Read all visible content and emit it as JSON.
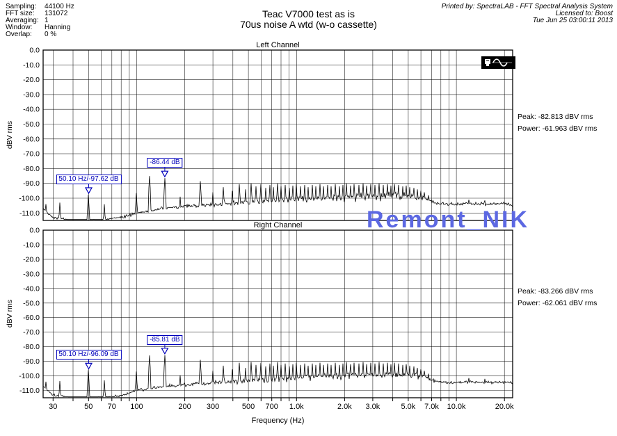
{
  "header": {
    "params": [
      {
        "label": "Sampling:",
        "value": "44100 Hz"
      },
      {
        "label": "FFT size:",
        "value": "131072"
      },
      {
        "label": "Averaging:",
        "value": "1"
      },
      {
        "label": "Window:",
        "value": "Hanning"
      },
      {
        "label": "Overlap:",
        "value": "0 %"
      }
    ],
    "title_line1": "Teac V7000 test as is",
    "title_line2": "70us noise A wtd (w-o cassette)",
    "printed_by": "Printed by: SpectraLAB - FFT Spectral Analysis System",
    "licensed_to": "Licensed to: Boost",
    "datetime": "Tue Jun 25 03:00:11 2013"
  },
  "watermark": {
    "text": "Remont_NIK",
    "color": "#5c68e2"
  },
  "colors": {
    "accent": "#0000bb",
    "trace": "#000000",
    "background": "#ffffff"
  },
  "axes": {
    "x_label": "Frequency (Hz)",
    "y_label": "dBV rms",
    "x_scale": "log",
    "x_ticks": [
      {
        "f": 30,
        "label": "30"
      },
      {
        "f": 50,
        "label": "50"
      },
      {
        "f": 70,
        "label": "70"
      },
      {
        "f": 100,
        "label": "100"
      },
      {
        "f": 200,
        "label": "200"
      },
      {
        "f": 300,
        "label": "300"
      },
      {
        "f": 500,
        "label": "500"
      },
      {
        "f": 700,
        "label": "700"
      },
      {
        "f": 1000,
        "label": "1.0k"
      },
      {
        "f": 2000,
        "label": "2.0k"
      },
      {
        "f": 3000,
        "label": "3.0k"
      },
      {
        "f": 5000,
        "label": "5.0k"
      },
      {
        "f": 7000,
        "label": "7.0k"
      },
      {
        "f": 10000,
        "label": "10.0k"
      },
      {
        "f": 20000,
        "label": "20.0k"
      }
    ],
    "y_ticks": [
      {
        "db": 0,
        "label": "0.0"
      },
      {
        "db": -10,
        "label": "-10.0"
      },
      {
        "db": -20,
        "label": "-20.0"
      },
      {
        "db": -30,
        "label": "-30.0"
      },
      {
        "db": -40,
        "label": "-40.0"
      },
      {
        "db": -50,
        "label": "-50.0"
      },
      {
        "db": -60,
        "label": "-60.0"
      },
      {
        "db": -70,
        "label": "-70.0"
      },
      {
        "db": -80,
        "label": "-80.0"
      },
      {
        "db": -90,
        "label": "-90.0"
      },
      {
        "db": -100,
        "label": "-100.0"
      },
      {
        "db": -110,
        "label": "-110.0"
      }
    ]
  },
  "chart_data": [
    {
      "type": "line",
      "title": "Left Channel",
      "xlabel": "Frequency (Hz)",
      "ylabel": "dBV rms",
      "x_scale": "log",
      "xlim": [
        26,
        22500
      ],
      "ylim": [
        -115,
        0
      ],
      "grid": true,
      "stats": {
        "peak": "Peak: -82.813 dBV rms",
        "power": "Power: -61.963 dBV rms"
      },
      "markers": [
        {
          "text": "50.10 Hz/-97.62 dB",
          "f": 50.1,
          "db": -97.62
        },
        {
          "text": "-86.44 dB",
          "f": 150,
          "db": -86.44
        }
      ],
      "noise_floor_dbv": [
        [
          26,
          -107
        ],
        [
          30,
          -113
        ],
        [
          40,
          -115
        ],
        [
          60,
          -115
        ],
        [
          80,
          -113
        ],
        [
          100,
          -110
        ],
        [
          130,
          -108
        ],
        [
          160,
          -106.5
        ],
        [
          200,
          -105.5
        ],
        [
          300,
          -104.5
        ],
        [
          400,
          -103.5
        ],
        [
          500,
          -103
        ],
        [
          700,
          -102
        ],
        [
          1000,
          -101
        ],
        [
          1500,
          -100
        ],
        [
          2000,
          -99.5
        ],
        [
          3000,
          -98.5
        ],
        [
          4000,
          -98
        ],
        [
          5000,
          -98.5
        ],
        [
          6000,
          -99.5
        ],
        [
          6800,
          -101.5
        ],
        [
          7500,
          -103.5
        ],
        [
          9000,
          -104
        ],
        [
          12000,
          -103.5
        ],
        [
          16000,
          -104
        ],
        [
          20000,
          -103.5
        ],
        [
          22500,
          -104.5
        ]
      ],
      "jitter_db": [
        [
          26,
          1
        ],
        [
          60,
          1
        ],
        [
          100,
          1.3
        ],
        [
          200,
          1.6
        ],
        [
          400,
          2
        ],
        [
          700,
          2.4
        ],
        [
          1000,
          2.8
        ],
        [
          1500,
          3.2
        ],
        [
          2000,
          3.6
        ],
        [
          3000,
          4
        ],
        [
          4500,
          4
        ],
        [
          6000,
          3.2
        ],
        [
          7000,
          1.6
        ],
        [
          9000,
          1.2
        ],
        [
          14000,
          1.3
        ],
        [
          22500,
          1.4
        ]
      ],
      "peaks_dbv": [
        [
          27,
          -104
        ],
        [
          33,
          -103
        ],
        [
          50.1,
          -97.62
        ],
        [
          63,
          -104
        ],
        [
          100,
          -96.5
        ],
        [
          120,
          -85
        ],
        [
          150,
          -86.44
        ],
        [
          188,
          -99
        ],
        [
          250,
          -88.5
        ],
        [
          300,
          -96
        ],
        [
          350,
          -92.5
        ],
        [
          395,
          -95
        ],
        [
          440,
          -90.5
        ],
        [
          480,
          -94
        ],
        [
          520,
          -90
        ],
        [
          560,
          -92
        ],
        [
          600,
          -90.5
        ],
        [
          640,
          -93
        ],
        [
          680,
          -91
        ],
        [
          720,
          -92.5
        ],
        [
          760,
          -90
        ],
        [
          800,
          -92
        ],
        [
          850,
          -91
        ],
        [
          900,
          -93
        ],
        [
          950,
          -91.5
        ],
        [
          1000,
          -90.5
        ],
        [
          1060,
          -92
        ],
        [
          1120,
          -91
        ],
        [
          1180,
          -92.5
        ],
        [
          1250,
          -91
        ],
        [
          1320,
          -92
        ],
        [
          1400,
          -90.5
        ],
        [
          1480,
          -92
        ],
        [
          1560,
          -91
        ],
        [
          1650,
          -92
        ],
        [
          1750,
          -90.5
        ],
        [
          1850,
          -92
        ],
        [
          1950,
          -91
        ],
        [
          2060,
          -90
        ],
        [
          2180,
          -91.5
        ],
        [
          2300,
          -90.5
        ],
        [
          2450,
          -91
        ],
        [
          2600,
          -90
        ],
        [
          2750,
          -91.5
        ],
        [
          2900,
          -90.5
        ],
        [
          3100,
          -91
        ],
        [
          3300,
          -90
        ],
        [
          3500,
          -91
        ],
        [
          3700,
          -90.5
        ],
        [
          3900,
          -91.5
        ],
        [
          4100,
          -90.5
        ],
        [
          4350,
          -91
        ],
        [
          4600,
          -92
        ],
        [
          4850,
          -91.5
        ],
        [
          5100,
          -92.5
        ],
        [
          5400,
          -93
        ],
        [
          5700,
          -94
        ],
        [
          6000,
          -95
        ],
        [
          6300,
          -96
        ],
        [
          6700,
          -98
        ],
        [
          12000,
          -101
        ],
        [
          15000,
          -101.5
        ]
      ],
      "seed": 42
    },
    {
      "type": "line",
      "title": "Right Channel",
      "xlabel": "Frequency (Hz)",
      "ylabel": "dBV rms",
      "x_scale": "log",
      "xlim": [
        26,
        22500
      ],
      "ylim": [
        -115,
        0
      ],
      "grid": true,
      "stats": {
        "peak": "Peak: -83.266 dBV rms",
        "power": "Power: -62.061 dBV rms"
      },
      "markers": [
        {
          "text": "50.10 Hz/-96.09 dB",
          "f": 50.1,
          "db": -96.09
        },
        {
          "text": "-85.81 dB",
          "f": 150,
          "db": -85.81
        }
      ],
      "noise_floor_dbv": [
        [
          26,
          -107
        ],
        [
          30,
          -113
        ],
        [
          40,
          -115
        ],
        [
          60,
          -115
        ],
        [
          80,
          -113.5
        ],
        [
          100,
          -110
        ],
        [
          130,
          -108
        ],
        [
          160,
          -107
        ],
        [
          200,
          -106
        ],
        [
          300,
          -105
        ],
        [
          400,
          -104
        ],
        [
          500,
          -103.5
        ],
        [
          700,
          -102.5
        ],
        [
          1000,
          -101.5
        ],
        [
          1500,
          -100.5
        ],
        [
          2000,
          -100
        ],
        [
          3000,
          -99
        ],
        [
          4000,
          -98.5
        ],
        [
          5000,
          -99
        ],
        [
          6000,
          -100
        ],
        [
          6800,
          -102
        ],
        [
          7500,
          -104
        ],
        [
          9000,
          -104.5
        ],
        [
          12000,
          -104
        ],
        [
          16000,
          -104.5
        ],
        [
          20000,
          -104
        ],
        [
          22500,
          -105
        ]
      ],
      "jitter_db": [
        [
          26,
          1
        ],
        [
          60,
          1
        ],
        [
          100,
          1.3
        ],
        [
          200,
          1.6
        ],
        [
          400,
          2
        ],
        [
          700,
          2.4
        ],
        [
          1000,
          2.8
        ],
        [
          1500,
          3.2
        ],
        [
          2000,
          3.6
        ],
        [
          3000,
          4
        ],
        [
          4500,
          4
        ],
        [
          6000,
          3.2
        ],
        [
          7000,
          1.6
        ],
        [
          9000,
          1.2
        ],
        [
          14000,
          1.3
        ],
        [
          22500,
          1.4
        ]
      ],
      "peaks_dbv": [
        [
          27,
          -104
        ],
        [
          33,
          -103.5
        ],
        [
          50.1,
          -96.09
        ],
        [
          63,
          -103
        ],
        [
          100,
          -97
        ],
        [
          120,
          -86
        ],
        [
          150,
          -85.81
        ],
        [
          188,
          -99.5
        ],
        [
          250,
          -89
        ],
        [
          300,
          -96.5
        ],
        [
          350,
          -93
        ],
        [
          395,
          -95.5
        ],
        [
          440,
          -91
        ],
        [
          480,
          -94.5
        ],
        [
          520,
          -90.5
        ],
        [
          560,
          -92.5
        ],
        [
          600,
          -91
        ],
        [
          640,
          -93.5
        ],
        [
          680,
          -91.5
        ],
        [
          720,
          -93
        ],
        [
          760,
          -90.5
        ],
        [
          800,
          -92.5
        ],
        [
          850,
          -91.5
        ],
        [
          900,
          -93.5
        ],
        [
          950,
          -92
        ],
        [
          1000,
          -91
        ],
        [
          1060,
          -92.5
        ],
        [
          1120,
          -91.5
        ],
        [
          1180,
          -93
        ],
        [
          1250,
          -91.5
        ],
        [
          1320,
          -92.5
        ],
        [
          1400,
          -91
        ],
        [
          1480,
          -92.5
        ],
        [
          1560,
          -91.5
        ],
        [
          1650,
          -92.5
        ],
        [
          1750,
          -91
        ],
        [
          1850,
          -92.5
        ],
        [
          1950,
          -91.5
        ],
        [
          2060,
          -90.5
        ],
        [
          2180,
          -92
        ],
        [
          2300,
          -91
        ],
        [
          2450,
          -91.5
        ],
        [
          2600,
          -90.5
        ],
        [
          2750,
          -92
        ],
        [
          2900,
          -91
        ],
        [
          3100,
          -91.5
        ],
        [
          3300,
          -90.5
        ],
        [
          3500,
          -91.5
        ],
        [
          3700,
          -91
        ],
        [
          3900,
          -92
        ],
        [
          4100,
          -91
        ],
        [
          4350,
          -91.5
        ],
        [
          4600,
          -92.5
        ],
        [
          4850,
          -92
        ],
        [
          5100,
          -93
        ],
        [
          5400,
          -93.5
        ],
        [
          5700,
          -94.5
        ],
        [
          6000,
          -95.5
        ],
        [
          6300,
          -96.5
        ],
        [
          6700,
          -98.5
        ],
        [
          12000,
          -101.5
        ],
        [
          15000,
          -102
        ]
      ],
      "seed": 1337
    }
  ]
}
